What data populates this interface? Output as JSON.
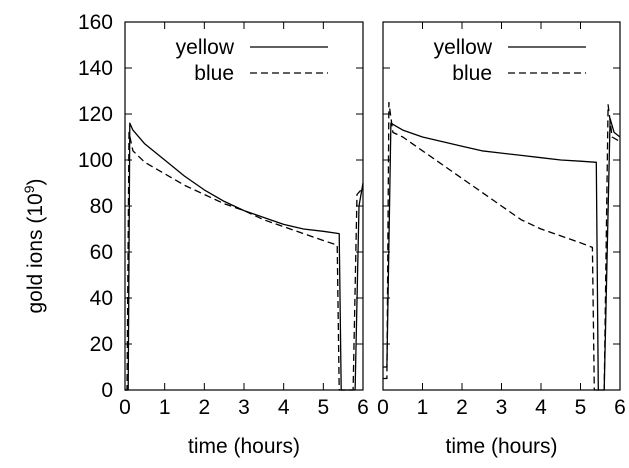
{
  "figure": {
    "ylabel": "gold ions (10",
    "ylabel_sup": "9",
    "ylabel_close": ")"
  },
  "chart_data": [
    {
      "type": "line",
      "xlabel": "time (hours)",
      "ylabel": "gold ions (10^9)",
      "xlim": [
        0,
        6
      ],
      "ylim": [
        0,
        160
      ],
      "xticks": [
        "0",
        "1",
        "2",
        "3",
        "4",
        "5",
        "6"
      ],
      "yticks": [
        "0",
        "20",
        "40",
        "60",
        "80",
        "100",
        "120",
        "140",
        "160"
      ],
      "legend_position": "top-right",
      "series": [
        {
          "name": "yellow",
          "style": "solid",
          "color": "#000000",
          "points": [
            [
              0.0,
              0
            ],
            [
              0.08,
              0
            ],
            [
              0.12,
              116
            ],
            [
              0.2,
              113
            ],
            [
              0.5,
              107
            ],
            [
              1.0,
              100
            ],
            [
              1.5,
              93
            ],
            [
              2.0,
              87
            ],
            [
              2.5,
              82
            ],
            [
              3.0,
              78
            ],
            [
              3.5,
              75
            ],
            [
              4.0,
              72
            ],
            [
              4.5,
              70
            ],
            [
              5.0,
              69
            ],
            [
              5.4,
              68
            ],
            [
              5.45,
              0
            ],
            [
              5.8,
              0
            ],
            [
              5.9,
              80
            ],
            [
              6.0,
              90
            ]
          ]
        },
        {
          "name": "blue",
          "style": "dashed",
          "color": "#000000",
          "points": [
            [
              0.0,
              0
            ],
            [
              0.05,
              0
            ],
            [
              0.1,
              112
            ],
            [
              0.2,
              104
            ],
            [
              0.5,
              99
            ],
            [
              1.0,
              94
            ],
            [
              1.5,
              89
            ],
            [
              2.0,
              85
            ],
            [
              2.5,
              81
            ],
            [
              3.0,
              78
            ],
            [
              3.5,
              74
            ],
            [
              4.0,
              71
            ],
            [
              4.5,
              68
            ],
            [
              5.0,
              65
            ],
            [
              5.35,
              63
            ],
            [
              5.4,
              0
            ],
            [
              5.75,
              0
            ],
            [
              5.85,
              85
            ],
            [
              6.0,
              88
            ]
          ]
        }
      ]
    },
    {
      "type": "line",
      "xlabel": "time (hours)",
      "xlim": [
        0,
        6
      ],
      "ylim": [
        0,
        160
      ],
      "xticks": [
        "0",
        "1",
        "2",
        "3",
        "4",
        "5",
        "6"
      ],
      "legend_position": "top-right",
      "series": [
        {
          "name": "yellow",
          "style": "solid",
          "color": "#000000",
          "points": [
            [
              0.0,
              10
            ],
            [
              0.1,
              10
            ],
            [
              0.2,
              116
            ],
            [
              0.5,
              113
            ],
            [
              1.0,
              110
            ],
            [
              1.5,
              108
            ],
            [
              2.0,
              106
            ],
            [
              2.5,
              104
            ],
            [
              3.0,
              103
            ],
            [
              3.5,
              102
            ],
            [
              4.0,
              101
            ],
            [
              4.5,
              100
            ],
            [
              5.0,
              99.5
            ],
            [
              5.4,
              99
            ],
            [
              5.45,
              0
            ],
            [
              5.6,
              0
            ],
            [
              5.75,
              118
            ],
            [
              5.85,
              112
            ],
            [
              6.0,
              110
            ]
          ]
        },
        {
          "name": "blue",
          "style": "dashed",
          "color": "#000000",
          "points": [
            [
              0.0,
              5
            ],
            [
              0.1,
              5
            ],
            [
              0.15,
              125
            ],
            [
              0.25,
              112
            ],
            [
              0.5,
              110
            ],
            [
              1.0,
              104
            ],
            [
              1.5,
              98
            ],
            [
              2.0,
              92
            ],
            [
              2.5,
              86
            ],
            [
              3.0,
              80
            ],
            [
              3.5,
              74
            ],
            [
              4.0,
              70
            ],
            [
              4.5,
              67
            ],
            [
              5.0,
              64
            ],
            [
              5.3,
              62
            ],
            [
              5.35,
              0
            ],
            [
              5.6,
              0
            ],
            [
              5.7,
              124
            ],
            [
              5.8,
              110
            ],
            [
              6.0,
              108
            ]
          ]
        }
      ]
    }
  ]
}
